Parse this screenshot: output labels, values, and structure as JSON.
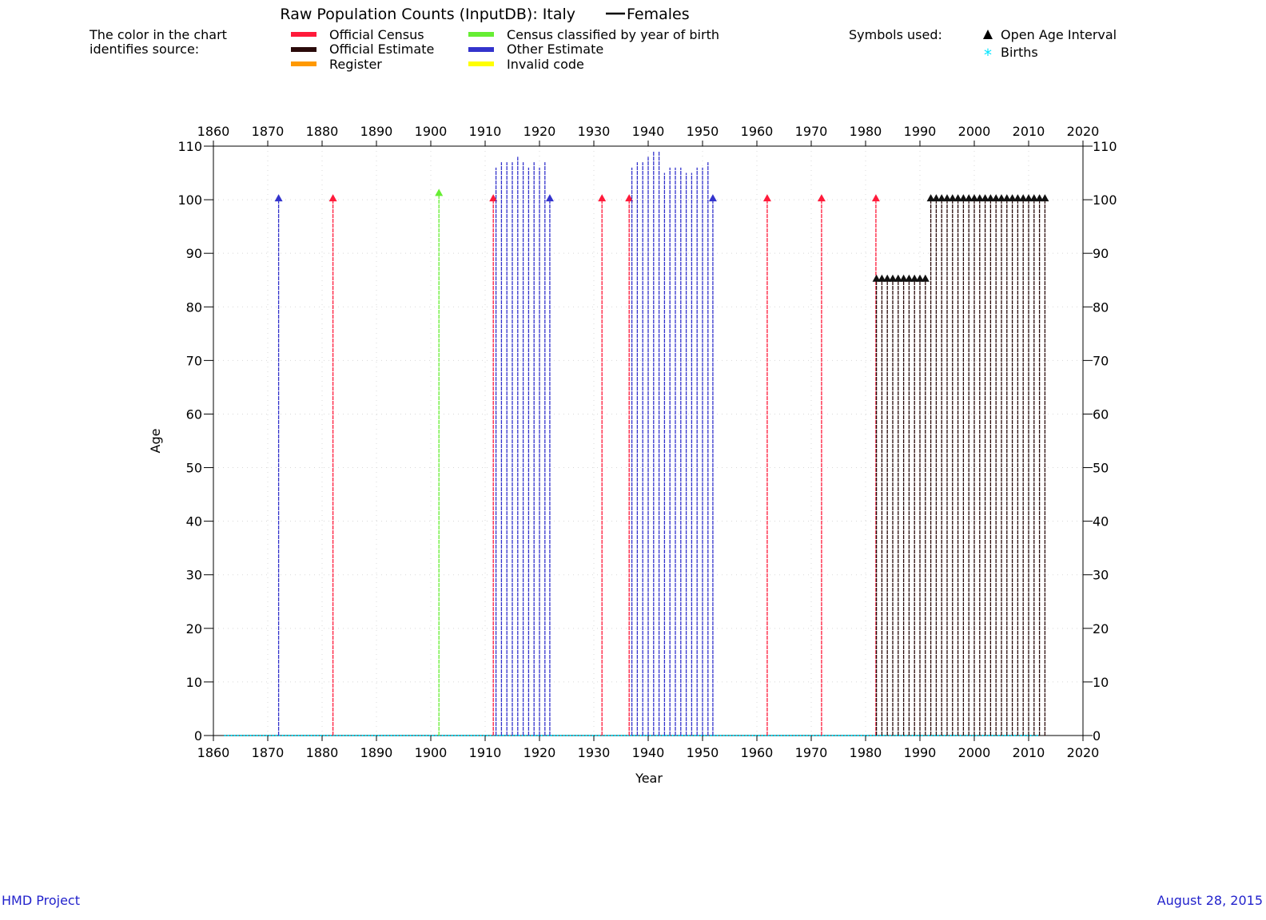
{
  "chart_data": {
    "type": "line",
    "title": "Raw Population Counts (InputDB): Italy",
    "title_series_label": "Females",
    "xlabel": "Year",
    "ylabel": "Age",
    "xlim": [
      1860,
      2020
    ],
    "ylim": [
      0,
      110
    ],
    "x_ticks": [
      "1860",
      "1870",
      "1880",
      "1890",
      "1900",
      "1910",
      "1920",
      "1930",
      "1940",
      "1950",
      "1960",
      "1970",
      "1980",
      "1990",
      "2000",
      "2010",
      "2020"
    ],
    "y_ticks": [
      "0",
      "10",
      "20",
      "30",
      "40",
      "50",
      "60",
      "70",
      "80",
      "90",
      "100",
      "110"
    ],
    "grid": true,
    "legend": {
      "note_line1": "The color in the chart",
      "note_line2": "identifies source:",
      "sources": [
        {
          "label": "Official Census",
          "color": "#ff1a3a"
        },
        {
          "label": "Official Estimate",
          "color": "#2a0a0a"
        },
        {
          "label": "Register",
          "color": "#ff9900"
        },
        {
          "label": "Census classified by year of birth",
          "color": "#66ee33"
        },
        {
          "label": "Other Estimate",
          "color": "#3333cc"
        },
        {
          "label": "Invalid code",
          "color": "#ffff00"
        }
      ],
      "symbols_title": "Symbols used:",
      "symbols": [
        {
          "label": "Open Age Interval",
          "icon": "triangle-up-icon",
          "color": "#000000"
        },
        {
          "label": "Births",
          "icon": "asterisk-icon",
          "color": "#00e5ff"
        }
      ]
    },
    "colors": {
      "census": "#ff1a3a",
      "estimate": "#2a0a0a",
      "byb": "#66ee33",
      "other": "#3333cc",
      "births": "#00e5ff"
    },
    "births_range": [
      1862,
      2012
    ],
    "series": [
      {
        "name": "Official Census",
        "color_key": "census",
        "open_age": 100,
        "years": [
          1882,
          1911.5,
          1931.5,
          1936.5,
          1961.9,
          1971.9,
          1981.9
        ]
      },
      {
        "name": "Census classified by year of birth",
        "color_key": "byb",
        "open_age": 101,
        "years": [
          1901.5
        ]
      },
      {
        "name": "Other Estimate",
        "color_key": "other",
        "open_age": 100,
        "years": [
          1872,
          1921.9,
          1951.9
        ]
      },
      {
        "name": "Other Estimate",
        "color_key": "other",
        "open_age": null,
        "points": [
          [
            1912,
            106
          ],
          [
            1913,
            107
          ],
          [
            1914,
            107
          ],
          [
            1915,
            107
          ],
          [
            1916,
            108
          ],
          [
            1917,
            107
          ],
          [
            1918,
            106
          ],
          [
            1919,
            107
          ],
          [
            1920,
            106
          ],
          [
            1921,
            107
          ],
          [
            1937,
            106
          ],
          [
            1938,
            107
          ],
          [
            1939,
            107
          ],
          [
            1940,
            108
          ],
          [
            1941,
            109
          ],
          [
            1942,
            109
          ],
          [
            1943,
            105
          ],
          [
            1944,
            106
          ],
          [
            1945,
            106
          ],
          [
            1946,
            106
          ],
          [
            1947,
            105
          ],
          [
            1948,
            105
          ],
          [
            1949,
            106
          ],
          [
            1950,
            106
          ],
          [
            1951,
            107
          ]
        ]
      },
      {
        "name": "Official Estimate",
        "color_key": "estimate",
        "open_age": 85,
        "years": [
          1982,
          1983,
          1984,
          1985,
          1986,
          1987,
          1988,
          1989,
          1990,
          1991
        ]
      },
      {
        "name": "Official Estimate",
        "color_key": "estimate",
        "open_age": 100,
        "years": [
          1992,
          1993,
          1994,
          1995,
          1996,
          1997,
          1998,
          1999,
          2000,
          2001,
          2002,
          2003,
          2004,
          2005,
          2006,
          2007,
          2008,
          2009,
          2010,
          2011,
          2012,
          2013
        ]
      }
    ]
  },
  "footer": {
    "left": "HMD Project",
    "right": "August 28, 2015"
  }
}
